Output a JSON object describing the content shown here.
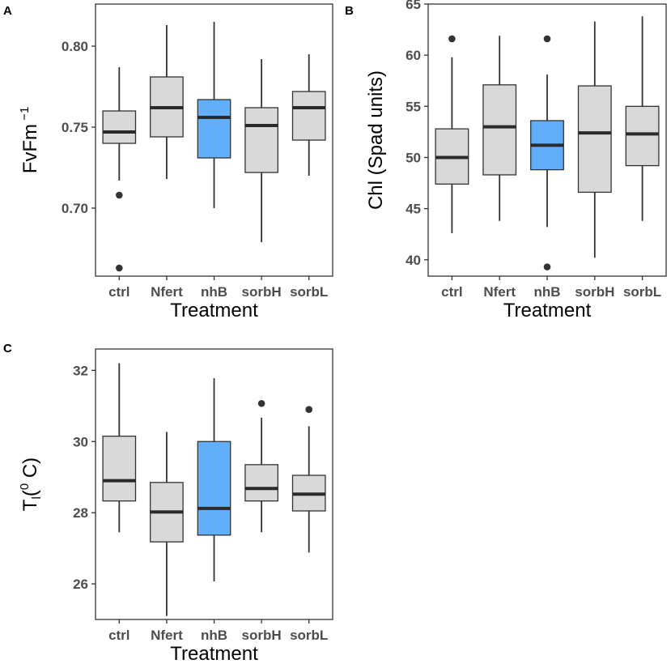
{
  "colors": {
    "default_fill": "#d9d9d9",
    "highlight_fill": "#61aefb",
    "line": "#333333"
  },
  "chart_data": [
    {
      "type": "box",
      "panel": "A",
      "xlabel": "Treatment",
      "ylabel_main": "FvFm",
      "ylabel_sup": " −1",
      "ylabel_sub": "",
      "ylabel_end": "",
      "categories": [
        "ctrl",
        "Nfert",
        "nhB",
        "sorbH",
        "sorbL"
      ],
      "highlight": "nhB",
      "ylim": [
        0.658,
        0.826
      ],
      "yticks": [
        0.7,
        0.75,
        0.8
      ],
      "ytick_labels": [
        "0.70",
        "0.75",
        "0.80"
      ],
      "boxes": [
        {
          "category": "ctrl",
          "whislo": 0.717,
          "q1": 0.74,
          "med": 0.747,
          "q3": 0.76,
          "whishi": 0.787,
          "outliers": [
            0.708,
            0.663
          ]
        },
        {
          "category": "Nfert",
          "whislo": 0.718,
          "q1": 0.744,
          "med": 0.762,
          "q3": 0.781,
          "whishi": 0.813,
          "outliers": []
        },
        {
          "category": "nhB",
          "whislo": 0.7,
          "q1": 0.731,
          "med": 0.756,
          "q3": 0.767,
          "whishi": 0.815,
          "outliers": []
        },
        {
          "category": "sorbH",
          "whislo": 0.679,
          "q1": 0.722,
          "med": 0.751,
          "q3": 0.762,
          "whishi": 0.792,
          "outliers": []
        },
        {
          "category": "sorbL",
          "whislo": 0.72,
          "q1": 0.742,
          "med": 0.762,
          "q3": 0.772,
          "whishi": 0.795,
          "outliers": []
        }
      ]
    },
    {
      "type": "box",
      "panel": "B",
      "xlabel": "Treatment",
      "ylabel_main": "Chl (Spad units)",
      "ylabel_sup": "",
      "ylabel_sub": "",
      "ylabel_end": "",
      "categories": [
        "ctrl",
        "Nfert",
        "nhB",
        "sorbH",
        "sorbL"
      ],
      "highlight": "nhB",
      "ylim": [
        38.4,
        65.0
      ],
      "yticks": [
        40,
        45,
        50,
        55,
        60,
        65
      ],
      "ytick_labels": [
        "40",
        "45",
        "50",
        "55",
        "60",
        "65"
      ],
      "boxes": [
        {
          "category": "ctrl",
          "whislo": 42.6,
          "q1": 47.4,
          "med": 50.0,
          "q3": 52.8,
          "whishi": 59.8,
          "outliers": [
            61.6
          ]
        },
        {
          "category": "Nfert",
          "whislo": 43.8,
          "q1": 48.3,
          "med": 53.0,
          "q3": 57.1,
          "whishi": 61.9,
          "outliers": []
        },
        {
          "category": "nhB",
          "whislo": 43.2,
          "q1": 48.8,
          "med": 51.2,
          "q3": 53.6,
          "whishi": 58.1,
          "outliers": [
            61.6,
            39.3
          ]
        },
        {
          "category": "sorbH",
          "whislo": 40.2,
          "q1": 46.6,
          "med": 52.4,
          "q3": 57.0,
          "whishi": 63.3,
          "outliers": []
        },
        {
          "category": "sorbL",
          "whislo": 43.8,
          "q1": 49.2,
          "med": 52.3,
          "q3": 55.0,
          "whishi": 63.8,
          "outliers": []
        }
      ]
    },
    {
      "type": "box",
      "panel": "C",
      "xlabel": "Treatment",
      "ylabel_main": "T",
      "ylabel_sub": "l",
      "ylabel_mid": "(",
      "ylabel_sup": "0",
      "ylabel_end": " C)",
      "categories": [
        "ctrl",
        "Nfert",
        "nhB",
        "sorbH",
        "sorbL"
      ],
      "highlight": "nhB",
      "ylim": [
        25.0,
        32.6
      ],
      "yticks": [
        26,
        28,
        30,
        32
      ],
      "ytick_labels": [
        "26",
        "28",
        "30",
        "32"
      ],
      "boxes": [
        {
          "category": "ctrl",
          "whislo": 27.45,
          "q1": 28.33,
          "med": 28.9,
          "q3": 30.15,
          "whishi": 32.2,
          "outliers": []
        },
        {
          "category": "Nfert",
          "whislo": 25.1,
          "q1": 27.18,
          "med": 28.02,
          "q3": 28.85,
          "whishi": 30.27,
          "outliers": []
        },
        {
          "category": "nhB",
          "whislo": 26.07,
          "q1": 27.37,
          "med": 28.12,
          "q3": 30.0,
          "whishi": 31.78,
          "outliers": []
        },
        {
          "category": "sorbH",
          "whislo": 27.45,
          "q1": 28.33,
          "med": 28.68,
          "q3": 29.35,
          "whishi": 30.67,
          "outliers": [
            31.07
          ]
        },
        {
          "category": "sorbL",
          "whislo": 26.88,
          "q1": 28.05,
          "med": 28.52,
          "q3": 29.05,
          "whishi": 30.43,
          "outliers": [
            30.9
          ]
        }
      ]
    }
  ]
}
